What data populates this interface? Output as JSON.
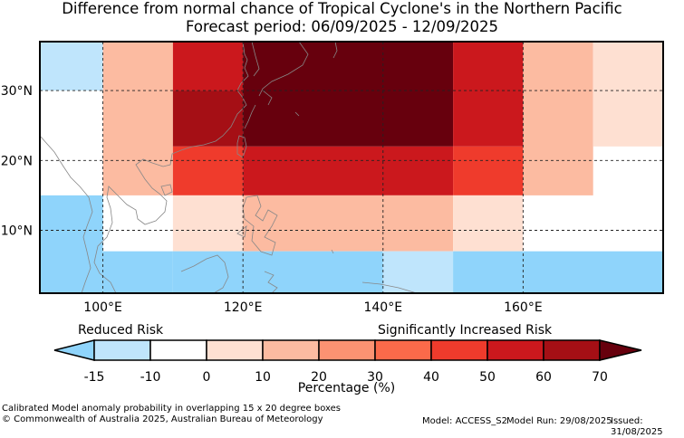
{
  "title": "Difference from normal chance of Tropical Cyclone's in the Northern Pacific",
  "subtitle": "Forecast period: 06/09/2025 - 12/09/2025",
  "map": {
    "lon_range": [
      91,
      180
    ],
    "lat_range": [
      1,
      37
    ],
    "lon_ticks": [
      {
        "value": 100,
        "label": "100°E"
      },
      {
        "value": 120,
        "label": "120°E"
      },
      {
        "value": 140,
        "label": "140°E"
      },
      {
        "value": 160,
        "label": "160°E"
      }
    ],
    "lat_ticks": [
      {
        "value": 10,
        "label": "10°N"
      },
      {
        "value": 20,
        "label": "20°N"
      },
      {
        "value": 30,
        "label": "30°N"
      }
    ],
    "gridlines": true,
    "cells": [
      {
        "lon": [
          90,
          100
        ],
        "lat": [
          30,
          37
        ],
        "level": 1
      },
      {
        "lon": [
          100,
          110
        ],
        "lat": [
          15,
          37
        ],
        "level": 4
      },
      {
        "lon": [
          110,
          120
        ],
        "lat": [
          30,
          37
        ],
        "level": 8
      },
      {
        "lon": [
          110,
          120
        ],
        "lat": [
          22,
          30
        ],
        "level": 9
      },
      {
        "lon": [
          110,
          120
        ],
        "lat": [
          15,
          22
        ],
        "level": 7
      },
      {
        "lon": [
          120,
          150
        ],
        "lat": [
          22,
          37
        ],
        "level": 10
      },
      {
        "lon": [
          120,
          150
        ],
        "lat": [
          15,
          22
        ],
        "level": 8
      },
      {
        "lon": [
          150,
          160
        ],
        "lat": [
          22,
          37
        ],
        "level": 8
      },
      {
        "lon": [
          150,
          160
        ],
        "lat": [
          15,
          22
        ],
        "level": 7
      },
      {
        "lon": [
          160,
          170
        ],
        "lat": [
          15,
          37
        ],
        "level": 4
      },
      {
        "lon": [
          170,
          180
        ],
        "lat": [
          22,
          37
        ],
        "level": 3
      },
      {
        "lon": [
          110,
          120
        ],
        "lat": [
          7,
          15
        ],
        "level": 3
      },
      {
        "lon": [
          120,
          150
        ],
        "lat": [
          7,
          15
        ],
        "level": 4
      },
      {
        "lon": [
          150,
          160
        ],
        "lat": [
          7,
          15
        ],
        "level": 3
      },
      {
        "lon": [
          90,
          100
        ],
        "lat": [
          0,
          15
        ],
        "level": 0
      },
      {
        "lon": [
          100,
          110
        ],
        "lat": [
          0,
          7
        ],
        "level": 0
      },
      {
        "lon": [
          110,
          140
        ],
        "lat": [
          0,
          7
        ],
        "level": 0
      },
      {
        "lon": [
          140,
          150
        ],
        "lat": [
          0,
          7
        ],
        "level": 1
      },
      {
        "lon": [
          150,
          180
        ],
        "lat": [
          0,
          7
        ],
        "level": 0
      }
    ]
  },
  "colorbar": {
    "label": "Percentage (%)",
    "left_label": "Reduced Risk",
    "right_label": "Significantly Increased Risk",
    "ticks": [
      "-15",
      "-10",
      "0",
      "10",
      "20",
      "30",
      "40",
      "50",
      "60",
      "70"
    ],
    "low_color": "#8fd4fb",
    "high_color": "#67000d",
    "colors": [
      "#bfe5fc",
      "#ffffff",
      "#fee0d2",
      "#fcbba1",
      "#fc9272",
      "#fb6a4a",
      "#ef3b2c",
      "#cb181d",
      "#a50f15"
    ],
    "cell_colors": [
      "#8fd4fb",
      "#bfe5fc",
      "#ffffff",
      "#fee0d2",
      "#fcbba1",
      "#fc9272",
      "#fb6a4a",
      "#ef3b2c",
      "#cb181d",
      "#a50f15",
      "#67000d"
    ]
  },
  "footer": {
    "line1": "Calibrated Model anomaly probability in overlapping 15 x 20 degree boxes",
    "line2": "© Commonwealth of Australia 2025, Australian Bureau of Meteorology",
    "model": "Model: ACCESS_S2",
    "model_run": "Model Run: 29/08/2025",
    "issued": "Issued: 31/08/2025"
  }
}
